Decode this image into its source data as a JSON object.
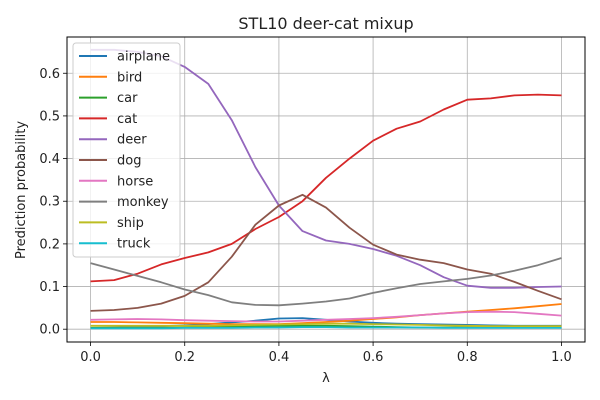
{
  "chart_data": {
    "type": "line",
    "title": "STL10 deer-cat mixup",
    "xlabel": "λ",
    "ylabel": "Prediction probability",
    "xlim": [
      -0.05,
      1.05
    ],
    "ylim": [
      -0.03,
      0.685
    ],
    "xticks": [
      "0.0",
      "0.2",
      "0.4",
      "0.6",
      "0.8",
      "1.0"
    ],
    "yticks": [
      "0.0",
      "0.1",
      "0.2",
      "0.3",
      "0.4",
      "0.5",
      "0.6"
    ],
    "grid": true,
    "legend_position": "top-left",
    "x": [
      0,
      0.05,
      0.1,
      0.15,
      0.2,
      0.25,
      0.3,
      0.35,
      0.4,
      0.45,
      0.5,
      0.55,
      0.6,
      0.65,
      0.7,
      0.75,
      0.8,
      0.85,
      0.9,
      0.95,
      1.0
    ],
    "series": [
      {
        "name": "airplane",
        "color": "#1f77b4",
        "values": [
          0.003,
          0.004,
          0.005,
          0.007,
          0.009,
          0.012,
          0.016,
          0.02,
          0.025,
          0.026,
          0.022,
          0.018,
          0.015,
          0.013,
          0.012,
          0.011,
          0.01,
          0.009,
          0.008,
          0.008,
          0.008
        ]
      },
      {
        "name": "bird",
        "color": "#ff7f0e",
        "values": [
          0.017,
          0.017,
          0.016,
          0.015,
          0.014,
          0.013,
          0.012,
          0.012,
          0.012,
          0.014,
          0.017,
          0.02,
          0.024,
          0.028,
          0.033,
          0.037,
          0.041,
          0.045,
          0.049,
          0.054,
          0.059
        ]
      },
      {
        "name": "car",
        "color": "#2ca02c",
        "values": [
          0.003,
          0.003,
          0.003,
          0.003,
          0.004,
          0.005,
          0.006,
          0.007,
          0.008,
          0.008,
          0.008,
          0.007,
          0.006,
          0.005,
          0.004,
          0.004,
          0.004,
          0.004,
          0.004,
          0.004,
          0.004
        ]
      },
      {
        "name": "cat",
        "color": "#d62728",
        "values": [
          0.112,
          0.115,
          0.13,
          0.152,
          0.167,
          0.18,
          0.2,
          0.235,
          0.263,
          0.3,
          0.355,
          0.4,
          0.442,
          0.47,
          0.487,
          0.515,
          0.538,
          0.541,
          0.548,
          0.55,
          0.548
        ]
      },
      {
        "name": "deer",
        "color": "#9467bd",
        "values": [
          0.655,
          0.655,
          0.65,
          0.64,
          0.615,
          0.575,
          0.49,
          0.38,
          0.29,
          0.23,
          0.208,
          0.2,
          0.188,
          0.172,
          0.15,
          0.122,
          0.102,
          0.097,
          0.097,
          0.099,
          0.1
        ]
      },
      {
        "name": "dog",
        "color": "#8c564b",
        "values": [
          0.043,
          0.045,
          0.05,
          0.06,
          0.078,
          0.11,
          0.17,
          0.245,
          0.29,
          0.315,
          0.285,
          0.238,
          0.198,
          0.175,
          0.163,
          0.155,
          0.14,
          0.13,
          0.111,
          0.09,
          0.07
        ]
      },
      {
        "name": "horse",
        "color": "#e377c2",
        "values": [
          0.022,
          0.023,
          0.024,
          0.023,
          0.021,
          0.02,
          0.019,
          0.018,
          0.018,
          0.02,
          0.022,
          0.024,
          0.026,
          0.029,
          0.033,
          0.037,
          0.04,
          0.041,
          0.04,
          0.036,
          0.032
        ]
      },
      {
        "name": "monkey",
        "color": "#7f7f7f",
        "values": [
          0.155,
          0.14,
          0.125,
          0.11,
          0.093,
          0.08,
          0.063,
          0.057,
          0.056,
          0.06,
          0.065,
          0.072,
          0.085,
          0.096,
          0.106,
          0.112,
          0.118,
          0.126,
          0.137,
          0.15,
          0.167
        ]
      },
      {
        "name": "ship",
        "color": "#bcbd22",
        "values": [
          0.008,
          0.008,
          0.008,
          0.008,
          0.008,
          0.008,
          0.009,
          0.01,
          0.011,
          0.012,
          0.013,
          0.013,
          0.012,
          0.011,
          0.01,
          0.009,
          0.008,
          0.007,
          0.007,
          0.007,
          0.007
        ]
      },
      {
        "name": "truck",
        "color": "#17becf",
        "values": [
          0.002,
          0.002,
          0.002,
          0.002,
          0.003,
          0.003,
          0.003,
          0.004,
          0.004,
          0.005,
          0.005,
          0.004,
          0.004,
          0.004,
          0.004,
          0.003,
          0.003,
          0.003,
          0.003,
          0.003,
          0.003
        ]
      }
    ]
  }
}
